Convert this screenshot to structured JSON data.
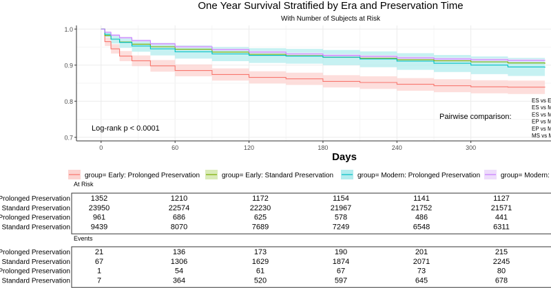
{
  "chart_data": {
    "type": "line",
    "title": "One Year Survival Stratified by Era and Preservation Time",
    "subtitle": "With Number of Subjects at Risk",
    "xlabel": "Days",
    "ylabel": "",
    "xlim": [
      -20,
      365
    ],
    "ylim": [
      0.69,
      1.01
    ],
    "xticks": [
      0,
      60,
      120,
      180,
      240,
      300
    ],
    "yticks": [
      0.7,
      0.8,
      0.9,
      1.0
    ],
    "ytick_labels": [
      "0.7",
      "0.8",
      "0.9",
      "1.0"
    ],
    "grid": true,
    "logrank": "Log-rank p < 0.0001",
    "pairwise_label": "Pairwise comparison:",
    "pairwise_items": [
      "ES vs EP",
      "ES vs MP",
      "ES vs MS",
      "EP vs MP",
      "EP vs MS",
      "MS vs MP"
    ],
    "legend": [
      {
        "label": "group= Early: Prolonged Preservation",
        "color": "#F8766D"
      },
      {
        "label": "group= Early: Standard Preservation",
        "color": "#7CAE00"
      },
      {
        "label": "group= Modern: Prolonged Preservation",
        "color": "#00BFC4"
      },
      {
        "label": "group= Modern: Standard Preservation",
        "color": "#C77CFF"
      }
    ],
    "series": [
      {
        "name": "Early: Prolonged Preservation",
        "color": "#F8766D",
        "band": "#FCD3D0",
        "x": [
          0,
          3,
          8,
          15,
          25,
          40,
          60,
          90,
          120,
          150,
          180,
          210,
          240,
          270,
          300,
          330,
          360
        ],
        "y": [
          1.0,
          0.965,
          0.945,
          0.925,
          0.912,
          0.898,
          0.885,
          0.874,
          0.866,
          0.862,
          0.855,
          0.852,
          0.847,
          0.843,
          0.84,
          0.839,
          0.838
        ],
        "lower": [
          1.0,
          0.953,
          0.932,
          0.911,
          0.897,
          0.882,
          0.869,
          0.857,
          0.849,
          0.845,
          0.838,
          0.834,
          0.829,
          0.825,
          0.822,
          0.82,
          0.819
        ],
        "upper": [
          1.0,
          0.976,
          0.958,
          0.939,
          0.927,
          0.914,
          0.902,
          0.891,
          0.883,
          0.879,
          0.872,
          0.869,
          0.864,
          0.861,
          0.858,
          0.857,
          0.856
        ]
      },
      {
        "name": "Early: Standard Preservation",
        "color": "#7CAE00",
        "band": "#D9EBB8",
        "x": [
          0,
          3,
          8,
          15,
          25,
          40,
          60,
          90,
          120,
          150,
          180,
          210,
          240,
          270,
          300,
          330,
          360
        ],
        "y": [
          1.0,
          0.982,
          0.972,
          0.964,
          0.958,
          0.951,
          0.944,
          0.936,
          0.93,
          0.926,
          0.922,
          0.919,
          0.915,
          0.912,
          0.909,
          0.906,
          0.904
        ],
        "lower": [
          1.0,
          0.98,
          0.97,
          0.961,
          0.955,
          0.948,
          0.941,
          0.933,
          0.927,
          0.923,
          0.919,
          0.916,
          0.912,
          0.908,
          0.905,
          0.902,
          0.9
        ],
        "upper": [
          1.0,
          0.984,
          0.974,
          0.967,
          0.961,
          0.954,
          0.947,
          0.939,
          0.933,
          0.929,
          0.925,
          0.922,
          0.918,
          0.916,
          0.913,
          0.91,
          0.908
        ]
      },
      {
        "name": "Modern: Prolonged Preservation",
        "color": "#00BFC4",
        "band": "#B3ECEE",
        "x": [
          0,
          3,
          8,
          15,
          25,
          40,
          60,
          90,
          120,
          150,
          180,
          210,
          240,
          270,
          300,
          330,
          360
        ],
        "y": [
          1.0,
          0.985,
          0.972,
          0.963,
          0.953,
          0.945,
          0.937,
          0.931,
          0.927,
          0.925,
          0.922,
          0.917,
          0.911,
          0.905,
          0.9,
          0.895,
          0.893
        ],
        "lower": [
          1.0,
          0.977,
          0.96,
          0.948,
          0.937,
          0.927,
          0.918,
          0.911,
          0.906,
          0.904,
          0.9,
          0.894,
          0.887,
          0.881,
          0.875,
          0.87,
          0.868
        ],
        "upper": [
          1.0,
          0.993,
          0.984,
          0.977,
          0.969,
          0.962,
          0.955,
          0.95,
          0.947,
          0.945,
          0.942,
          0.938,
          0.933,
          0.928,
          0.924,
          0.92,
          0.918
        ]
      },
      {
        "name": "Modern: Standard Preservation",
        "color": "#C77CFF",
        "band": "#EEDCFB",
        "x": [
          0,
          3,
          8,
          15,
          25,
          40,
          60,
          90,
          120,
          150,
          180,
          210,
          240,
          270,
          300,
          330,
          360
        ],
        "y": [
          1.0,
          0.991,
          0.983,
          0.976,
          0.968,
          0.959,
          0.951,
          0.943,
          0.936,
          0.931,
          0.927,
          0.924,
          0.92,
          0.917,
          0.915,
          0.913,
          0.912
        ],
        "lower": [
          1.0,
          0.989,
          0.98,
          0.973,
          0.965,
          0.956,
          0.948,
          0.94,
          0.932,
          0.927,
          0.923,
          0.92,
          0.916,
          0.913,
          0.911,
          0.909,
          0.908
        ],
        "upper": [
          1.0,
          0.993,
          0.986,
          0.979,
          0.971,
          0.962,
          0.954,
          0.946,
          0.94,
          0.935,
          0.931,
          0.928,
          0.924,
          0.921,
          0.919,
          0.917,
          0.916
        ]
      }
    ]
  },
  "risk_table": {
    "title": "At Risk",
    "rows": [
      {
        "label": "Early: Prolonged Preservation",
        "values": [
          "1352",
          "1210",
          "1172",
          "1154",
          "1141",
          "1127"
        ]
      },
      {
        "label": "Early: Standard Preservation",
        "values": [
          "23950",
          "22574",
          "22230",
          "21967",
          "21752",
          "21571"
        ]
      },
      {
        "label": "Modern: Prolonged Preservation",
        "values": [
          "961",
          "686",
          "625",
          "578",
          "486",
          "441"
        ]
      },
      {
        "label": "Modern: Standard Preservation",
        "values": [
          "9439",
          "8070",
          "7689",
          "7249",
          "6548",
          "6311"
        ]
      }
    ]
  },
  "events_table": {
    "title": "Events",
    "rows": [
      {
        "label": "Early: Prolonged Preservation",
        "values": [
          "21",
          "136",
          "173",
          "190",
          "201",
          "215"
        ]
      },
      {
        "label": "Early: Standard Preservation",
        "values": [
          "67",
          "1306",
          "1629",
          "1874",
          "2071",
          "2245"
        ]
      },
      {
        "label": "Modern: Prolonged Preservation",
        "values": [
          "1",
          "54",
          "61",
          "67",
          "73",
          "80"
        ]
      },
      {
        "label": "Modern: Standard Preservation",
        "values": [
          "7",
          "364",
          "520",
          "597",
          "645",
          "678"
        ]
      }
    ]
  }
}
